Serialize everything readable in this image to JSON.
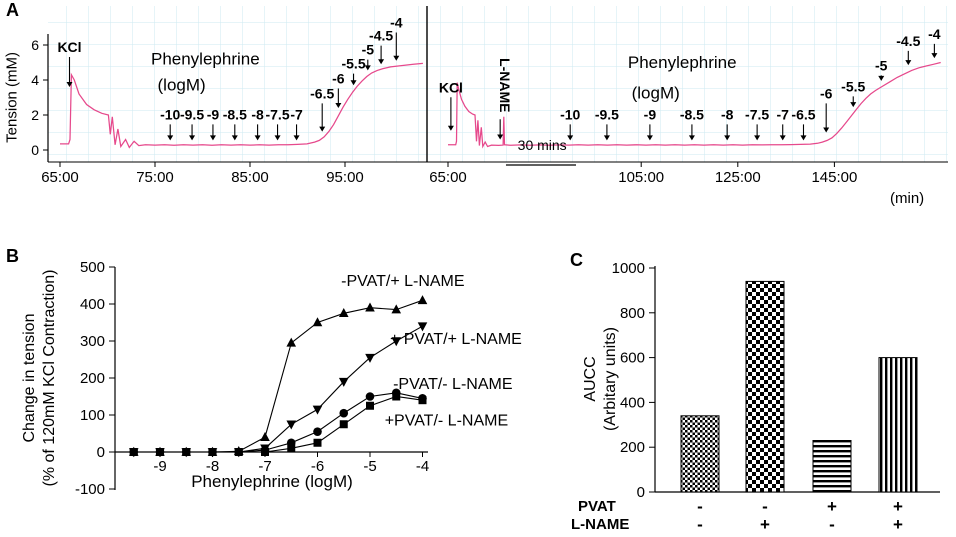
{
  "colors": {
    "trace": "#e6498c",
    "grid": "#cdeaf2",
    "axis": "#000000"
  },
  "labels": {
    "panel_a": "A",
    "panel_b": "B",
    "panel_c": "C",
    "a_ylabel": "Tension (mM)",
    "a_xunit": "(min)",
    "b_ylabel_line1": "Change in tension",
    "b_ylabel_line2": "(% of 120mM KCl Contraction)",
    "b_xlabel": "Phenylephrine (logM)",
    "c_ylabel_line1": "AUCC",
    "c_ylabel_line2": "(Arbitary units)",
    "c_row1": "PVAT",
    "c_row2": "L-NAME"
  },
  "chart_data": [
    {
      "id": "trace-no-lname",
      "type": "line",
      "ylabel": "Tension (mM)",
      "xlabel": "(min)",
      "ylim": [
        0,
        6
      ],
      "y_ticks": [
        0,
        2,
        4,
        6
      ],
      "x_ticks": [
        {
          "label": "65:00",
          "t": 65
        },
        {
          "label": "75:00",
          "t": 75
        },
        {
          "label": "85:00",
          "t": 85
        },
        {
          "label": "95:00",
          "t": 95
        }
      ],
      "annotations": [
        {
          "text": "KCl",
          "t": 66.0,
          "label_mM": 5.6,
          "tip_mM": 3.6
        },
        {
          "text": "-10",
          "t": 76.6,
          "label_mM": 1.75,
          "tip_mM": 0.55
        },
        {
          "text": "-9.5",
          "t": 78.9,
          "label_mM": 1.75,
          "tip_mM": 0.55
        },
        {
          "text": "-9",
          "t": 81.1,
          "label_mM": 1.75,
          "tip_mM": 0.55
        },
        {
          "text": "-8.5",
          "t": 83.4,
          "label_mM": 1.75,
          "tip_mM": 0.55
        },
        {
          "text": "-8",
          "t": 85.8,
          "label_mM": 1.75,
          "tip_mM": 0.55
        },
        {
          "text": "-7.5",
          "t": 87.9,
          "label_mM": 1.75,
          "tip_mM": 0.55
        },
        {
          "text": "-7",
          "t": 89.9,
          "label_mM": 1.75,
          "tip_mM": 0.55
        },
        {
          "text": "-6.5",
          "t": 92.6,
          "label_mM": 2.95,
          "tip_mM": 1.05
        },
        {
          "text": "-6",
          "t": 94.3,
          "label_mM": 3.8,
          "tip_mM": 2.4
        },
        {
          "text": "-5.5",
          "t": 95.9,
          "label_mM": 4.65,
          "tip_mM": 3.7
        },
        {
          "text": "-5",
          "t": 97.4,
          "label_mM": 5.45,
          "tip_mM": 4.55
        },
        {
          "text": "-4.5",
          "t": 98.8,
          "label_mM": 6.25,
          "tip_mM": 4.9
        },
        {
          "text": "-4",
          "t": 100.4,
          "label_mM": 7.0,
          "tip_mM": 5.1
        }
      ],
      "texts": [
        {
          "text": "Phenylephrine",
          "t": 80.3,
          "mM": 4.9,
          "size": 17
        },
        {
          "text": "(logM)",
          "t": 77.8,
          "mM": 3.4,
          "size": 17
        }
      ],
      "trace": [
        [
          65,
          0.35
        ],
        [
          65.9,
          0.35
        ],
        [
          66.05,
          0.6
        ],
        [
          66.2,
          4.3
        ],
        [
          66.5,
          4.0
        ],
        [
          67,
          3.2
        ],
        [
          67.8,
          2.6
        ],
        [
          68.6,
          2.3
        ],
        [
          69.4,
          2.1
        ],
        [
          70.1,
          2.0
        ],
        [
          70.3,
          0.9
        ],
        [
          70.5,
          1.9
        ],
        [
          70.8,
          0.3
        ],
        [
          71.1,
          1.2
        ],
        [
          71.4,
          0.2
        ],
        [
          71.9,
          0.6
        ],
        [
          72.3,
          0.15
        ],
        [
          72.8,
          0.5
        ],
        [
          73.3,
          0.25
        ],
        [
          74,
          0.3
        ],
        [
          75,
          0.28
        ],
        [
          76,
          0.3
        ],
        [
          77,
          0.27
        ],
        [
          78,
          0.3
        ],
        [
          79,
          0.28
        ],
        [
          80,
          0.3
        ],
        [
          81,
          0.27
        ],
        [
          82,
          0.3
        ],
        [
          83,
          0.28
        ],
        [
          84,
          0.3
        ],
        [
          85,
          0.28
        ],
        [
          86,
          0.3
        ],
        [
          87,
          0.28
        ],
        [
          88,
          0.3
        ],
        [
          89,
          0.3
        ],
        [
          90,
          0.32
        ],
        [
          91,
          0.35
        ],
        [
          91.8,
          0.45
        ],
        [
          92.3,
          0.55
        ],
        [
          92.8,
          0.75
        ],
        [
          93.3,
          1.05
        ],
        [
          93.8,
          1.45
        ],
        [
          94.3,
          1.95
        ],
        [
          94.8,
          2.45
        ],
        [
          95.3,
          2.9
        ],
        [
          95.8,
          3.3
        ],
        [
          96.3,
          3.65
        ],
        [
          96.8,
          3.95
        ],
        [
          97.3,
          4.2
        ],
        [
          97.8,
          4.4
        ],
        [
          98.4,
          4.55
        ],
        [
          99,
          4.65
        ],
        [
          99.8,
          4.75
        ],
        [
          100.6,
          4.8
        ],
        [
          101.4,
          4.85
        ],
        [
          102.2,
          4.9
        ],
        [
          103.2,
          4.95
        ]
      ]
    },
    {
      "id": "trace-lname",
      "type": "line",
      "ylabel": "Tension (mM)",
      "xlabel": "(min)",
      "ylim": [
        0,
        6
      ],
      "y_ticks": [
        0,
        2,
        4,
        6
      ],
      "x_ticks": [
        {
          "label": "65:00",
          "t": 65
        },
        {
          "label": "105:00",
          "t": 105
        },
        {
          "label": "125:00",
          "t": 125
        },
        {
          "label": "145:00",
          "t": 145
        }
      ],
      "annotations": [
        {
          "text": "KCl",
          "t": 65.6,
          "label_mM": 3.3,
          "tip_mM": 1.1
        },
        {
          "text": "L-NAME",
          "t": 75.8,
          "label_mM": 3.7,
          "tip_mM": 0.6,
          "vertical": true
        },
        {
          "text": "-10",
          "t": 90.3,
          "label_mM": 1.75,
          "tip_mM": 0.55
        },
        {
          "text": "-9.5",
          "t": 97.9,
          "label_mM": 1.75,
          "tip_mM": 0.55
        },
        {
          "text": "-9",
          "t": 106.8,
          "label_mM": 1.75,
          "tip_mM": 0.55
        },
        {
          "text": "-8.5",
          "t": 115.5,
          "label_mM": 1.75,
          "tip_mM": 0.55
        },
        {
          "text": "-8",
          "t": 122.8,
          "label_mM": 1.75,
          "tip_mM": 0.55
        },
        {
          "text": "-7.5",
          "t": 129.0,
          "label_mM": 1.75,
          "tip_mM": 0.55
        },
        {
          "text": "-7",
          "t": 134.3,
          "label_mM": 1.75,
          "tip_mM": 0.55
        },
        {
          "text": "-6.5",
          "t": 138.6,
          "label_mM": 1.75,
          "tip_mM": 0.55
        },
        {
          "text": "-6",
          "t": 143.3,
          "label_mM": 2.95,
          "tip_mM": 1.0
        },
        {
          "text": "-5.5",
          "t": 148.9,
          "label_mM": 3.35,
          "tip_mM": 2.45
        },
        {
          "text": "-5",
          "t": 154.7,
          "label_mM": 4.55,
          "tip_mM": 3.95
        },
        {
          "text": "-4.5",
          "t": 160.3,
          "label_mM": 5.95,
          "tip_mM": 4.85
        },
        {
          "text": "-4",
          "t": 165.7,
          "label_mM": 6.35,
          "tip_mM": 5.25
        }
      ],
      "texts": [
        {
          "text": "Phenylephrine",
          "t": 113.5,
          "mM": 4.7,
          "size": 17
        },
        {
          "text": "(logM)",
          "t": 108.0,
          "mM": 2.95,
          "size": 17
        }
      ],
      "period": {
        "t1": 77.0,
        "t2": 91.5,
        "text": "30 mins",
        "text_t": 84.5,
        "text_mM": 0.0
      },
      "trace": [
        [
          65,
          0.3
        ],
        [
          66.6,
          0.3
        ],
        [
          66.75,
          0.5
        ],
        [
          66.9,
          3.85
        ],
        [
          67.2,
          3.5
        ],
        [
          67.8,
          2.9
        ],
        [
          68.5,
          2.5
        ],
        [
          69.3,
          2.2
        ],
        [
          70.1,
          2.05
        ],
        [
          70.6,
          2.0
        ],
        [
          70.9,
          0.5
        ],
        [
          71.2,
          1.7
        ],
        [
          71.5,
          0.25
        ],
        [
          71.9,
          1.3
        ],
        [
          72.2,
          0.2
        ],
        [
          72.7,
          0.45
        ],
        [
          73.2,
          0.2
        ],
        [
          74,
          0.28
        ],
        [
          75.5,
          0.26
        ],
        [
          76.4,
          0.28
        ],
        [
          76.55,
          1.9
        ],
        [
          76.7,
          0.3
        ],
        [
          78,
          0.27
        ],
        [
          80,
          0.29
        ],
        [
          82,
          0.27
        ],
        [
          84,
          0.29
        ],
        [
          86,
          0.27
        ],
        [
          88,
          0.29
        ],
        [
          90,
          0.28
        ],
        [
          92,
          0.3
        ],
        [
          94,
          0.28
        ],
        [
          96,
          0.3
        ],
        [
          98,
          0.28
        ],
        [
          100,
          0.3
        ],
        [
          102,
          0.28
        ],
        [
          104,
          0.3
        ],
        [
          106,
          0.28
        ],
        [
          108,
          0.3
        ],
        [
          110,
          0.28
        ],
        [
          112,
          0.3
        ],
        [
          114,
          0.28
        ],
        [
          116,
          0.3
        ],
        [
          118,
          0.28
        ],
        [
          120,
          0.3
        ],
        [
          122,
          0.28
        ],
        [
          124,
          0.3
        ],
        [
          126,
          0.28
        ],
        [
          128,
          0.3
        ],
        [
          130,
          0.29
        ],
        [
          132,
          0.3
        ],
        [
          134,
          0.3
        ],
        [
          136,
          0.31
        ],
        [
          138,
          0.32
        ],
        [
          140,
          0.34
        ],
        [
          141.5,
          0.38
        ],
        [
          142.5,
          0.45
        ],
        [
          143.5,
          0.55
        ],
        [
          144.5,
          0.7
        ],
        [
          145.5,
          0.95
        ],
        [
          146.5,
          1.25
        ],
        [
          147.5,
          1.6
        ],
        [
          148.5,
          1.95
        ],
        [
          149.5,
          2.3
        ],
        [
          150.5,
          2.65
        ],
        [
          151.5,
          2.95
        ],
        [
          152.5,
          3.2
        ],
        [
          153.5,
          3.4
        ],
        [
          155,
          3.65
        ],
        [
          156.5,
          3.9
        ],
        [
          158,
          4.15
        ],
        [
          159.5,
          4.35
        ],
        [
          161,
          4.55
        ],
        [
          162.5,
          4.7
        ],
        [
          164,
          4.8
        ],
        [
          165.5,
          4.9
        ],
        [
          167,
          5.0
        ]
      ]
    },
    {
      "id": "dose-response",
      "type": "scatter",
      "xlabel": "Phenylephrine (logM)",
      "ylabel": "Change in tension (% of 120mM KCl Contraction)",
      "xlim": [
        -9.9,
        -4
      ],
      "ylim": [
        -100,
        500
      ],
      "x_ticks": [
        -9,
        -8,
        -7,
        -6,
        -5,
        -4
      ],
      "y_ticks": [
        -100,
        0,
        100,
        200,
        300,
        400,
        500
      ],
      "x": [
        -9.5,
        -9,
        -8.5,
        -8,
        -7.5,
        -7,
        -6.5,
        -6,
        -5.5,
        -5,
        -4.5,
        -4
      ],
      "series": [
        {
          "name": "-PVAT/+ L-NAME",
          "marker": "triangle-up",
          "values": [
            0,
            0,
            0,
            0,
            2,
            40,
            295,
            350,
            375,
            390,
            385,
            410
          ],
          "label_log": -5.55,
          "label_val": 448
        },
        {
          "name": "+ PVAT/+ L-NAME",
          "marker": "triangle-down",
          "values": [
            0,
            0,
            0,
            0,
            0,
            10,
            75,
            115,
            190,
            255,
            300,
            340
          ],
          "label_log": -4.62,
          "label_val": 292
        },
        {
          "name": "-PVAT/- L-NAME",
          "marker": "circle",
          "values": [
            0,
            0,
            0,
            0,
            0,
            5,
            25,
            55,
            105,
            150,
            160,
            145
          ],
          "label_log": -4.56,
          "label_val": 170
        },
        {
          "name": "+PVAT/- L-NAME",
          "marker": "square",
          "values": [
            0,
            0,
            0,
            0,
            0,
            0,
            10,
            25,
            75,
            125,
            150,
            140
          ],
          "label_log": -4.72,
          "label_val": 72
        }
      ]
    },
    {
      "id": "aucc-bars",
      "type": "bar",
      "ylabel": "AUCC (Arbitary units)",
      "ylim": [
        0,
        1000
      ],
      "y_ticks": [
        0,
        200,
        400,
        600,
        800,
        1000
      ],
      "categories": [
        "-PVAT / -L-NAME",
        "-PVAT / +L-NAME",
        "+PVAT / -L-NAME",
        "+PVAT / +L-NAME"
      ],
      "values": [
        340,
        940,
        230,
        600
      ],
      "patterns": [
        "checker-fine",
        "checker",
        "hstripe",
        "vstripe"
      ],
      "pvat_signs": [
        "-",
        "-",
        "+",
        "+"
      ],
      "lname_signs": [
        "-",
        "+",
        "-",
        "+"
      ]
    }
  ]
}
